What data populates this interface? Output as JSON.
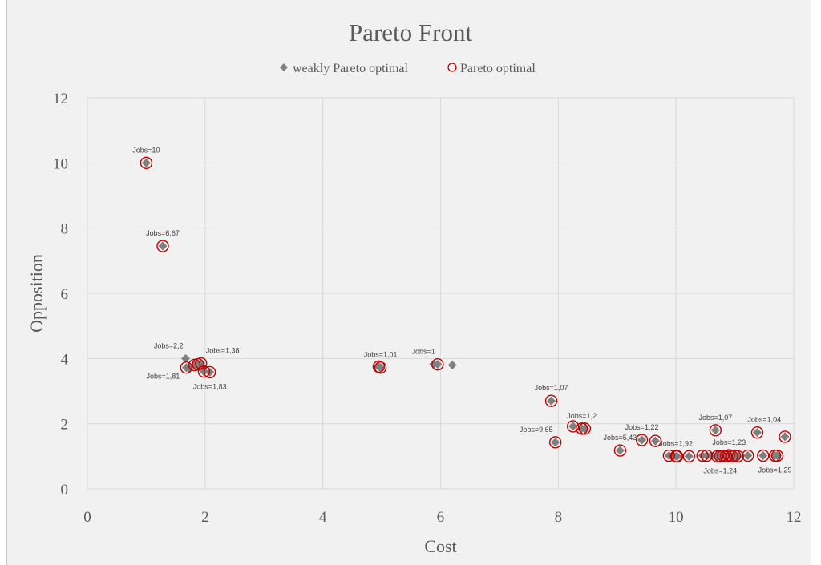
{
  "chart_data": {
    "type": "scatter",
    "title": "Pareto Front",
    "xlabel": "Cost",
    "ylabel": "Opposition",
    "xlim": [
      0,
      12
    ],
    "ylim": [
      0,
      12
    ],
    "x_ticks": [
      0,
      2,
      4,
      6,
      8,
      10,
      12
    ],
    "y_ticks": [
      0,
      2,
      4,
      6,
      8,
      10,
      12
    ],
    "grid": "major gridlines on both axes",
    "legend_position": "top",
    "colors": {
      "weakly": "#7f7f7f",
      "pareto": "#c00000",
      "background": "#f1f1f1",
      "grid": "#d9d9d9"
    },
    "series": [
      {
        "name": "weakly Pareto optimal",
        "marker": "diamond",
        "points": [
          [
            1.0,
            10.0
          ],
          [
            1.28,
            7.45
          ],
          [
            1.67,
            4.0
          ],
          [
            1.68,
            3.72
          ],
          [
            1.72,
            3.7
          ],
          [
            1.82,
            3.8
          ],
          [
            1.88,
            3.82
          ],
          [
            1.9,
            3.75
          ],
          [
            1.93,
            3.85
          ],
          [
            1.96,
            3.72
          ],
          [
            1.98,
            3.6
          ],
          [
            2.08,
            3.58
          ],
          [
            4.95,
            3.75
          ],
          [
            4.98,
            3.72
          ],
          [
            5.88,
            3.82
          ],
          [
            5.95,
            3.82
          ],
          [
            6.2,
            3.8
          ],
          [
            7.88,
            2.7
          ],
          [
            7.95,
            1.43
          ],
          [
            8.25,
            1.92
          ],
          [
            8.4,
            1.85
          ],
          [
            8.45,
            1.85
          ],
          [
            9.05,
            1.18
          ],
          [
            9.42,
            1.5
          ],
          [
            9.65,
            1.47
          ],
          [
            9.88,
            1.02
          ],
          [
            10.0,
            1.0
          ],
          [
            10.02,
            1.0
          ],
          [
            10.22,
            1.0
          ],
          [
            10.45,
            1.02
          ],
          [
            10.52,
            1.02
          ],
          [
            10.6,
            1.02
          ],
          [
            10.67,
            1.8
          ],
          [
            10.7,
            1.0
          ],
          [
            10.75,
            1.0
          ],
          [
            10.8,
            1.02
          ],
          [
            10.85,
            1.0
          ],
          [
            10.9,
            1.03
          ],
          [
            10.95,
            1.0
          ],
          [
            11.0,
            1.02
          ],
          [
            11.05,
            1.0
          ],
          [
            11.22,
            1.02
          ],
          [
            11.38,
            1.73
          ],
          [
            11.48,
            1.02
          ],
          [
            11.68,
            1.02
          ],
          [
            11.72,
            1.02
          ],
          [
            11.85,
            1.6
          ]
        ]
      },
      {
        "name": "Pareto optimal",
        "marker": "circle",
        "points": [
          [
            1.0,
            10.0
          ],
          [
            1.28,
            7.45
          ],
          [
            1.68,
            3.72
          ],
          [
            1.82,
            3.8
          ],
          [
            1.88,
            3.82
          ],
          [
            1.93,
            3.85
          ],
          [
            1.98,
            3.6
          ],
          [
            2.08,
            3.58
          ],
          [
            4.95,
            3.75
          ],
          [
            4.98,
            3.72
          ],
          [
            5.95,
            3.82
          ],
          [
            7.88,
            2.7
          ],
          [
            7.95,
            1.43
          ],
          [
            8.25,
            1.92
          ],
          [
            8.4,
            1.85
          ],
          [
            8.45,
            1.85
          ],
          [
            9.05,
            1.18
          ],
          [
            9.42,
            1.5
          ],
          [
            9.65,
            1.47
          ],
          [
            9.88,
            1.02
          ],
          [
            10.0,
            1.0
          ],
          [
            10.02,
            1.0
          ],
          [
            10.22,
            1.0
          ],
          [
            10.45,
            1.02
          ],
          [
            10.52,
            1.02
          ],
          [
            10.67,
            1.8
          ],
          [
            10.7,
            1.0
          ],
          [
            10.75,
            1.0
          ],
          [
            10.8,
            1.02
          ],
          [
            10.85,
            1.0
          ],
          [
            10.9,
            1.03
          ],
          [
            10.95,
            1.0
          ],
          [
            11.0,
            1.02
          ],
          [
            11.05,
            1.0
          ],
          [
            11.22,
            1.02
          ],
          [
            11.38,
            1.73
          ],
          [
            11.48,
            1.02
          ],
          [
            11.68,
            1.02
          ],
          [
            11.72,
            1.02
          ],
          [
            11.85,
            1.6
          ]
        ]
      }
    ],
    "annotations": [
      {
        "text": "Jobs=10",
        "x": 1.0,
        "y": 10.0,
        "position": "above"
      },
      {
        "text": "Jobs=6,67",
        "x": 1.28,
        "y": 7.45,
        "position": "above"
      },
      {
        "text": "Jobs=2,2",
        "x": 1.67,
        "y": 4.0,
        "position": "above-left"
      },
      {
        "text": "Jobs=1,38",
        "x": 1.93,
        "y": 3.85,
        "position": "above-right"
      },
      {
        "text": "Jobs=1,81",
        "x": 1.68,
        "y": 3.72,
        "position": "below-left"
      },
      {
        "text": "Jobs=1,83",
        "x": 2.08,
        "y": 3.58,
        "position": "below"
      },
      {
        "text": "Jobs=1,01",
        "x": 4.98,
        "y": 3.72,
        "position": "above"
      },
      {
        "text": "Jobs=1",
        "x": 5.95,
        "y": 3.82,
        "position": "above-left"
      },
      {
        "text": "Jobs=1,07",
        "x": 7.88,
        "y": 2.7,
        "position": "above"
      },
      {
        "text": "Jobs=9,65",
        "x": 7.95,
        "y": 1.43,
        "position": "above-left"
      },
      {
        "text": "Jobs=1,2",
        "x": 8.4,
        "y": 1.85,
        "position": "above"
      },
      {
        "text": "Jobs=5,43",
        "x": 9.05,
        "y": 1.18,
        "position": "above"
      },
      {
        "text": "Jobs=1,22",
        "x": 9.42,
        "y": 1.5,
        "position": "above"
      },
      {
        "text": "Jobs=1,92",
        "x": 10.0,
        "y": 1.0,
        "position": "above"
      },
      {
        "text": "Jobs=1,07",
        "x": 10.67,
        "y": 1.8,
        "position": "above"
      },
      {
        "text": "Jobs=1,23",
        "x": 10.9,
        "y": 1.03,
        "position": "above"
      },
      {
        "text": "Jobs=1,24",
        "x": 10.75,
        "y": 1.0,
        "position": "below"
      },
      {
        "text": "Jobs=1,04",
        "x": 11.5,
        "y": 1.73,
        "position": "above"
      },
      {
        "text": "Jobs=1,29",
        "x": 11.68,
        "y": 1.02,
        "position": "below"
      }
    ]
  }
}
